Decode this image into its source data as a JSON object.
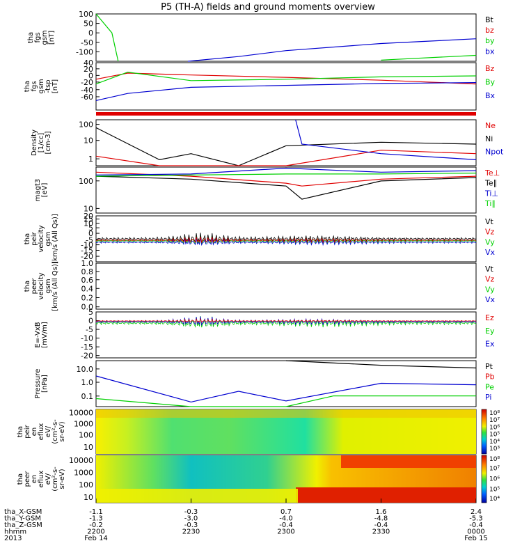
{
  "title": "P5 (TH-A) fields and ground moments overview",
  "colors": {
    "black": "#000000",
    "red": "#e00000",
    "green": "#00d000",
    "blue": "#0000d0"
  },
  "panels": [
    {
      "id": "fgs_hi",
      "ylabel": [
        "tha",
        "fgs",
        "gsm",
        "[nT]"
      ],
      "yticks": [
        {
          "v": "100",
          "f": 0.0
        },
        {
          "v": "50",
          "f": 0.2
        },
        {
          "v": "0",
          "f": 0.4
        },
        {
          "v": "-50",
          "f": 0.6
        },
        {
          "v": "-100",
          "f": 0.8
        }
      ],
      "legend": [
        {
          "t": "Bt",
          "c": "black"
        },
        {
          "t": "bz",
          "c": "red"
        },
        {
          "t": "by",
          "c": "green"
        },
        {
          "t": "bx",
          "c": "blue"
        }
      ]
    },
    {
      "id": "fgs_lo",
      "ylabel": [
        "tha",
        "fgs",
        "gsm",
        "-tsp",
        "[nT]"
      ],
      "yticks": [
        {
          "v": "40",
          "f": 0.0
        },
        {
          "v": "20",
          "f": 0.13
        },
        {
          "v": "0",
          "f": 0.27
        },
        {
          "v": "-20",
          "f": 0.41
        },
        {
          "v": "-40",
          "f": 0.57
        },
        {
          "v": "-60",
          "f": 0.72
        }
      ],
      "legend": [
        {
          "t": "Bz",
          "c": "red"
        },
        {
          "t": "By",
          "c": "green"
        },
        {
          "t": "Bx",
          "c": "blue"
        }
      ]
    },
    {
      "id": "density",
      "ylabel": [
        "Density",
        "[1/cc]",
        "[cm-3]"
      ],
      "yticks": [
        {
          "v": "100",
          "f": 0.1
        },
        {
          "v": "10",
          "f": 0.45
        },
        {
          "v": "1",
          "f": 0.85
        }
      ],
      "legend": [
        {
          "t": "Ne",
          "c": "red"
        },
        {
          "t": "Ni",
          "c": "black"
        },
        {
          "t": "Npot",
          "c": "blue"
        }
      ]
    },
    {
      "id": "temp",
      "ylabel": [
        "magt3",
        "[eV]"
      ],
      "yticks": [
        {
          "v": "100",
          "f": 0.3
        },
        {
          "v": "10",
          "f": 0.9
        }
      ],
      "legend": [
        {
          "t": "Te⊥",
          "c": "red"
        },
        {
          "t": "Te∥",
          "c": "black"
        },
        {
          "t": "Ti⊥",
          "c": "blue"
        },
        {
          "t": "Ti∥",
          "c": "green"
        }
      ]
    },
    {
      "id": "peir_vel",
      "ylabel": [
        "tha",
        "peir",
        "velocity",
        "gsm",
        "[km/s (All Qs)]"
      ],
      "yticks": [
        {
          "v": "20",
          "f": 0.0
        },
        {
          "v": "15",
          "f": 0.07
        },
        {
          "v": "10",
          "f": 0.16
        },
        {
          "v": "5",
          "f": 0.26
        },
        {
          "v": "0",
          "f": 0.38
        },
        {
          "v": "-5",
          "f": 0.52
        },
        {
          "v": "-10",
          "f": 0.63
        },
        {
          "v": "-15",
          "f": 0.75
        },
        {
          "v": "-20",
          "f": 0.88
        }
      ],
      "legend": [
        {
          "t": "Vt",
          "c": "black"
        },
        {
          "t": "Vz",
          "c": "red"
        },
        {
          "t": "Vy",
          "c": "green"
        },
        {
          "t": "Vx",
          "c": "blue"
        }
      ]
    },
    {
      "id": "peer_vel",
      "ylabel": [
        "tha",
        "peer",
        "velocity",
        "gsm",
        "[km/s (All Qs)]"
      ],
      "yticks": [
        {
          "v": "1.0",
          "f": 0.0
        },
        {
          "v": "0.8",
          "f": 0.18
        },
        {
          "v": "0.6",
          "f": 0.36
        },
        {
          "v": "0.4",
          "f": 0.55
        },
        {
          "v": "0.2",
          "f": 0.75
        },
        {
          "v": "0.0",
          "f": 0.95
        }
      ],
      "legend": [
        {
          "t": "Vt",
          "c": "black"
        },
        {
          "t": "Vz",
          "c": "red"
        },
        {
          "t": "Vy",
          "c": "green"
        },
        {
          "t": "Vx",
          "c": "blue"
        }
      ]
    },
    {
      "id": "efield",
      "ylabel": [
        "E=-VxB",
        "[mV/m]"
      ],
      "yticks": [
        {
          "v": "5",
          "f": 0.0
        },
        {
          "v": "0",
          "f": 0.19
        },
        {
          "v": "-5",
          "f": 0.38
        },
        {
          "v": "-10",
          "f": 0.57
        },
        {
          "v": "-15",
          "f": 0.76
        },
        {
          "v": "-20",
          "f": 0.95
        }
      ],
      "legend": [
        {
          "t": "Ez",
          "c": "red"
        },
        {
          "t": "Ey",
          "c": "green"
        },
        {
          "t": "Ex",
          "c": "blue"
        }
      ]
    },
    {
      "id": "pressure",
      "ylabel": [
        "Pressure",
        "[nPa]"
      ],
      "yticks": [
        {
          "v": "10.0",
          "f": 0.18
        },
        {
          "v": "1.0",
          "f": 0.47
        },
        {
          "v": "0.1",
          "f": 0.77
        }
      ],
      "legend": [
        {
          "t": "Pt",
          "c": "black"
        },
        {
          "t": "Pb",
          "c": "red"
        },
        {
          "t": "Pe",
          "c": "green"
        },
        {
          "t": "Pi",
          "c": "blue"
        }
      ]
    },
    {
      "id": "peir_spec",
      "ylabel": [
        "tha",
        "peir",
        "en",
        "eflux",
        "eV/",
        "(cm²-s-",
        "sr-eV)"
      ],
      "yticks": [
        {
          "v": "10000",
          "f": 0.07
        },
        {
          "v": "1000",
          "f": 0.32
        },
        {
          "v": "100",
          "f": 0.57
        },
        {
          "v": "10",
          "f": 0.84
        }
      ],
      "cbar": [
        {
          "v": "10⁸",
          "f": 0.06
        },
        {
          "v": "10⁷",
          "f": 0.22
        },
        {
          "v": "10⁶",
          "f": 0.38
        },
        {
          "v": "10⁵",
          "f": 0.54
        },
        {
          "v": "10⁴",
          "f": 0.7
        },
        {
          "v": "10³",
          "f": 0.86
        }
      ]
    },
    {
      "id": "peer_spec",
      "ylabel": [
        "tha",
        "peer",
        "en",
        "eflux",
        "eV/",
        "(cm²-s-",
        "sr-eV)"
      ],
      "yticks": [
        {
          "v": "10000",
          "f": 0.1
        },
        {
          "v": "1000",
          "f": 0.36
        },
        {
          "v": "100",
          "f": 0.62
        },
        {
          "v": "10",
          "f": 0.88
        }
      ],
      "cbar": [
        {
          "v": "10⁸",
          "f": 0.06
        },
        {
          "v": "10⁷",
          "f": 0.26
        },
        {
          "v": "10⁶",
          "f": 0.48
        },
        {
          "v": "10⁵",
          "f": 0.7
        },
        {
          "v": "10⁴",
          "f": 0.9
        }
      ]
    }
  ],
  "xaxis": {
    "rows": [
      {
        "label": "tha_X-GSM",
        "values": [
          "-1.1",
          "-0.3",
          "0.7",
          "1.6",
          "2.4"
        ]
      },
      {
        "label": "tha_Y-GSM",
        "values": [
          "-1.3",
          "-3.0",
          "-4.0",
          "-4.8",
          "-5.3"
        ]
      },
      {
        "label": "tha_Z-GSM",
        "values": [
          "-0.2",
          "-0.3",
          "-0.4",
          "-0.4",
          "-0.4"
        ]
      },
      {
        "label": "hhmm",
        "values": [
          "2200",
          "2230",
          "2300",
          "2330",
          "0000"
        ]
      },
      {
        "label": "2013",
        "values": [
          "Feb 14",
          "",
          "",
          "",
          "Feb 15"
        ]
      }
    ]
  },
  "chart_data": {
    "type": "line",
    "title": "P5 (TH-A) fields and ground moments overview",
    "x": {
      "label": "hhmm",
      "ticks": [
        "2200",
        "2230",
        "2300",
        "2330",
        "0000"
      ],
      "dates": [
        "Feb 14",
        "Feb 15"
      ],
      "year": "2013"
    },
    "panels": [
      {
        "name": "tha fgs gsm",
        "unit": "nT",
        "ylim": [
          -100,
          100
        ],
        "series": [
          {
            "name": "by",
            "x": [
              "2200",
              "2205",
              "2207"
            ],
            "values": [
              100,
              20,
              -100
            ]
          },
          {
            "name": "bx",
            "x": [
              "2229",
              "2245",
              "2300",
              "2330",
              "0000"
            ],
            "values": [
              -100,
              -80,
              -55,
              -25,
              -5
            ]
          },
          {
            "name": "by",
            "x": [
              "2330",
              "0000"
            ],
            "values": [
              -95,
              -75
            ]
          }
        ]
      },
      {
        "name": "tha fgs gsm -tsp",
        "unit": "nT",
        "ylim": [
          -60,
          40
        ],
        "series": [
          {
            "name": "Bz",
            "x": [
              "2200",
              "2210",
              "2230",
              "2300",
              "2330",
              "0000"
            ],
            "values": [
              5,
              18,
              14,
              9,
              3,
              -5
            ]
          },
          {
            "name": "By",
            "x": [
              "2200",
              "2210",
              "2230",
              "2300",
              "2330",
              "0000"
            ],
            "values": [
              -5,
              20,
              2,
              5,
              10,
              12
            ]
          },
          {
            "name": "Bx",
            "x": [
              "2200",
              "2210",
              "2230",
              "2300",
              "2330",
              "0000"
            ],
            "values": [
              -40,
              -25,
              -12,
              -8,
              -4,
              -2
            ]
          }
        ]
      },
      {
        "name": "Density",
        "unit": "1/cc",
        "ylim": [
          1,
          200
        ],
        "series": [
          {
            "name": "Ni",
            "x": [
              "2200",
              "2220",
              "2230",
              "2245",
              "2300",
              "2330",
              "0000"
            ],
            "values": [
              80,
              2,
              4,
              1,
              10,
              15,
              12
            ]
          },
          {
            "name": "Ne",
            "x": [
              "2200",
              "2220",
              "2300",
              "2330",
              "0000"
            ],
            "values": [
              3,
              1,
              1,
              6,
              4
            ]
          },
          {
            "name": "Npot",
            "x": [
              "2303",
              "2305",
              "2330",
              "0000"
            ],
            "values": [
              200,
              12,
              4,
              2
            ]
          }
        ]
      },
      {
        "name": "magt3",
        "unit": "eV",
        "ylim": [
          10,
          1000
        ],
        "series": [
          {
            "name": "Te⊥",
            "x": [
              "2200",
              "2230",
              "2300",
              "2305",
              "2330",
              "0000"
            ],
            "values": [
              600,
              400,
              200,
              150,
              300,
              400
            ]
          },
          {
            "name": "Te∥",
            "x": [
              "2200",
              "2230",
              "2300",
              "2305",
              "2330",
              "0000"
            ],
            "values": [
              400,
              300,
              150,
              40,
              250,
              350
            ]
          },
          {
            "name": "Ti⊥",
            "x": [
              "2200",
              "2230",
              "2300",
              "2330",
              "0000"
            ],
            "values": [
              450,
              500,
              900,
              600,
              700
            ]
          },
          {
            "name": "Ti∥",
            "x": [
              "2200",
              "2230",
              "2300",
              "2330",
              "0000"
            ],
            "values": [
              400,
              450,
              500,
              500,
              550
            ]
          }
        ]
      },
      {
        "name": "tha peir velocity gsm",
        "unit": "km/s",
        "ylim": [
          -20,
          20
        ]
      },
      {
        "name": "tha peer velocity gsm",
        "unit": "km/s",
        "ylim": [
          0,
          1
        ]
      },
      {
        "name": "E=-VxB",
        "unit": "mV/m",
        "ylim": [
          -20,
          5
        ]
      },
      {
        "name": "Pressure",
        "unit": "nPa",
        "ylim": [
          0.03,
          30
        ],
        "series": [
          {
            "name": "Pt",
            "x": [
              "2300",
              "2330",
              "0000"
            ],
            "values": [
              30,
              15,
              10
            ]
          },
          {
            "name": "Pi",
            "x": [
              "2200",
              "2230",
              "2245",
              "2300",
              "2330",
              "0000"
            ],
            "values": [
              3,
              0.06,
              0.3,
              0.07,
              1,
              0.8
            ]
          },
          {
            "name": "Pe",
            "x": [
              "2200",
              "2230",
              "2300",
              "2315",
              "0000"
            ],
            "values": [
              0.1,
              0.03,
              0.03,
              0.15,
              0.15
            ]
          }
        ]
      }
    ]
  }
}
